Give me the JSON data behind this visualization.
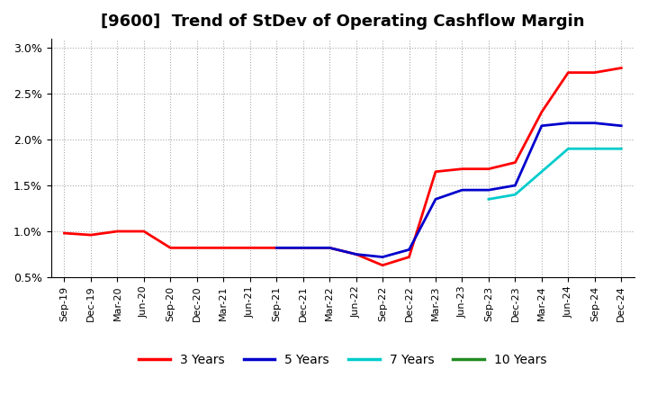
{
  "title": "[9600]  Trend of StDev of Operating Cashflow Margin",
  "ylim": [
    0.005,
    0.031
  ],
  "yticks": [
    0.005,
    0.01,
    0.015,
    0.02,
    0.025,
    0.03
  ],
  "ytick_labels": [
    "0.5%",
    "1.0%",
    "1.5%",
    "2.0%",
    "2.5%",
    "3.0%"
  ],
  "x_labels": [
    "Sep-19",
    "Dec-19",
    "Mar-20",
    "Jun-20",
    "Sep-20",
    "Dec-20",
    "Mar-21",
    "Jun-21",
    "Sep-21",
    "Dec-21",
    "Mar-22",
    "Jun-22",
    "Sep-22",
    "Dec-22",
    "Mar-23",
    "Jun-23",
    "Sep-23",
    "Dec-23",
    "Mar-24",
    "Jun-24",
    "Sep-24",
    "Dec-24"
  ],
  "series": {
    "3 Years": {
      "color": "#FF0000",
      "data_x": [
        0,
        1,
        2,
        3,
        4,
        5,
        6,
        7,
        8,
        9,
        10,
        11,
        12,
        13,
        14,
        15,
        16,
        17,
        18,
        19,
        20,
        21
      ],
      "data_y": [
        0.0098,
        0.0096,
        0.01,
        0.01,
        0.0082,
        0.0082,
        0.0082,
        0.0082,
        0.0082,
        0.0082,
        0.0082,
        0.0075,
        0.0063,
        0.0072,
        0.0165,
        0.0168,
        0.0168,
        0.0175,
        0.023,
        0.0273,
        0.0273,
        0.0278
      ]
    },
    "5 Years": {
      "color": "#0000CC",
      "data_x": [
        8,
        9,
        10,
        11,
        12,
        13,
        14,
        15,
        16,
        17,
        18,
        19,
        20,
        21
      ],
      "data_y": [
        0.0082,
        0.0082,
        0.0082,
        0.0075,
        0.0072,
        0.008,
        0.0135,
        0.0145,
        0.0145,
        0.015,
        0.0215,
        0.0218,
        0.0218,
        0.0215
      ]
    },
    "7 Years": {
      "color": "#00CCCC",
      "data_x": [
        16,
        17,
        18,
        19,
        20,
        21
      ],
      "data_y": [
        0.0135,
        0.014,
        0.0165,
        0.019,
        0.019,
        0.019
      ]
    },
    "10 Years": {
      "color": "#228B22",
      "data_x": [],
      "data_y": []
    }
  },
  "legend_labels": [
    "3 Years",
    "5 Years",
    "7 Years",
    "10 Years"
  ],
  "legend_colors": [
    "#FF0000",
    "#0000CC",
    "#00CCCC",
    "#228B22"
  ],
  "grid_color": "#AAAAAA",
  "background_color": "#FFFFFF",
  "title_fontsize": 13
}
